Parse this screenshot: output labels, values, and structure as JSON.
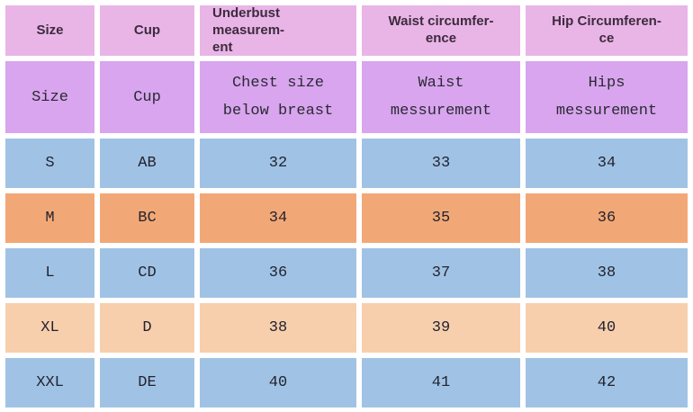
{
  "table": {
    "header_primary": {
      "bg": "#e9b5e7",
      "text_color": "#3d2b3d",
      "cells": [
        {
          "lines": [
            "Size"
          ]
        },
        {
          "lines": [
            "Cup"
          ]
        },
        {
          "lines": [
            "Underbust measurem-",
            "ent"
          ]
        },
        {
          "lines": [
            "Waist circumfer-",
            "ence"
          ]
        },
        {
          "lines": [
            "Hip Circumferen-",
            "ce"
          ]
        }
      ]
    },
    "header_secondary": {
      "bg": "#d9a5ee",
      "text_color": "#2a2a34",
      "cells": [
        {
          "lines": [
            "Size"
          ]
        },
        {
          "lines": [
            "Cup"
          ]
        },
        {
          "lines": [
            "Chest size",
            "below breast"
          ]
        },
        {
          "lines": [
            "Waist",
            "messurement"
          ]
        },
        {
          "lines": [
            "Hips",
            "messurement"
          ]
        }
      ]
    },
    "rows": [
      {
        "bg": "#a0c3e5",
        "cells": [
          "S",
          "AB",
          "32",
          "33",
          "34"
        ]
      },
      {
        "bg": "#f2a876",
        "cells": [
          "M",
          "BC",
          "34",
          "35",
          "36"
        ]
      },
      {
        "bg": "#a0c3e5",
        "cells": [
          "L",
          "CD",
          "36",
          "37",
          "38"
        ]
      },
      {
        "bg": "#f7cfad",
        "cells": [
          "XL",
          "D",
          "38",
          "39",
          "40"
        ]
      },
      {
        "bg": "#a0c3e5",
        "cells": [
          "XXL",
          "DE",
          "40",
          "41",
          "42"
        ]
      }
    ]
  },
  "chart_data": {
    "type": "table",
    "columns": [
      "Size",
      "Cup",
      "Underbust measurement",
      "Waist circumference",
      "Hip Circumference"
    ],
    "subheader": [
      "Size",
      "Cup",
      "Chest size below breast",
      "Waist messurement",
      "Hips messurement"
    ],
    "rows": [
      [
        "S",
        "AB",
        32,
        33,
        34
      ],
      [
        "M",
        "BC",
        34,
        35,
        36
      ],
      [
        "L",
        "CD",
        36,
        37,
        38
      ],
      [
        "XL",
        "D",
        38,
        39,
        40
      ],
      [
        "XXL",
        "DE",
        40,
        41,
        42
      ]
    ],
    "row_colors": [
      "#a0c3e5",
      "#f2a876",
      "#a0c3e5",
      "#f7cfad",
      "#a0c3e5"
    ],
    "header_colors": [
      "#e9b5e7",
      "#d9a5ee"
    ]
  }
}
